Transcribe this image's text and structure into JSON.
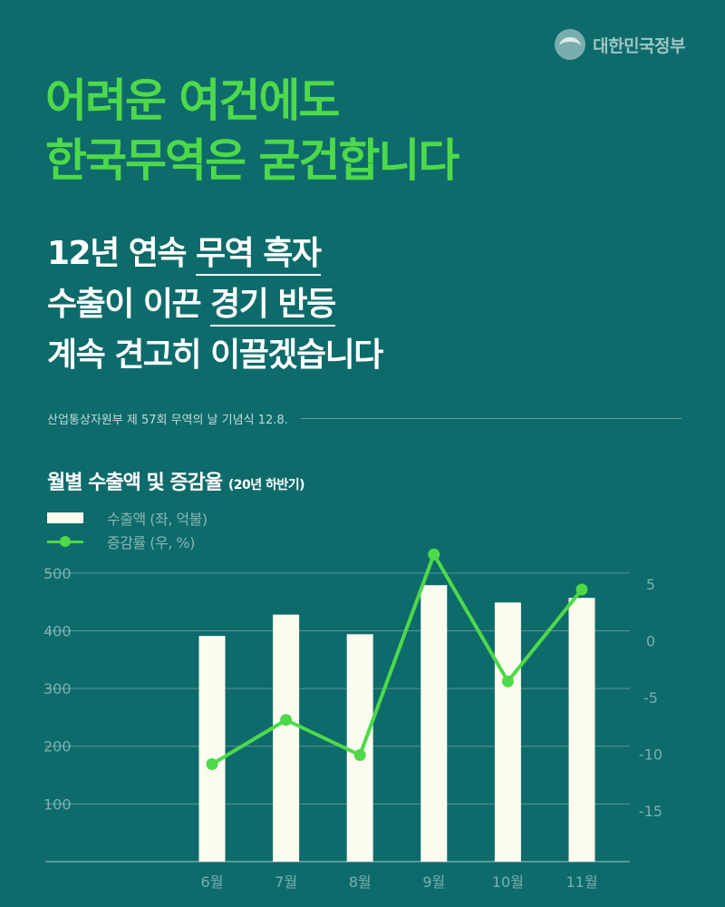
{
  "brand": {
    "name": "대한민국정부",
    "icon": "taegeuk-icon"
  },
  "headline": {
    "line1": "어려운 여건에도",
    "line2": "한국무역은 굳건합니다"
  },
  "subhead": {
    "line1_pre": "12년 연속 ",
    "line1_ul": "무역 흑자",
    "line2_pre": "수출이 이끈 ",
    "line2_ul": "경기 반등",
    "line3": "계속 견고히 이끌겠습니다"
  },
  "source": "산업통상자원부 제 57회 무역의 날 기념식 12.8.",
  "colors": {
    "background": "#0e6b6b",
    "accent": "#4ed94a",
    "bar": "#fbfcef"
  },
  "chart_data": {
    "type": "bar",
    "title": "월별 수출액 및 증감율",
    "subtitle": "(20년 하반기)",
    "categories": [
      "6월",
      "7월",
      "8월",
      "9월",
      "10월",
      "11월"
    ],
    "series": [
      {
        "name": "수출액 (좌, 억불)",
        "type": "bar",
        "axis": "left",
        "values": [
          391,
          428,
          394,
          479,
          449,
          457
        ]
      },
      {
        "name": "증감률 (우, %)",
        "type": "line",
        "axis": "right",
        "values": [
          -10.9,
          -7.0,
          -10.1,
          7.6,
          -3.6,
          4.5
        ]
      }
    ],
    "left_axis": {
      "ylim": [
        0,
        550
      ],
      "ticks": [
        100,
        200,
        300,
        400,
        500
      ]
    },
    "right_axis": {
      "ylim": [
        -19.5,
        8.5
      ],
      "ticks": [
        5,
        0,
        -5,
        -10,
        -15
      ]
    },
    "grid": true,
    "legend_position": "top-left"
  }
}
